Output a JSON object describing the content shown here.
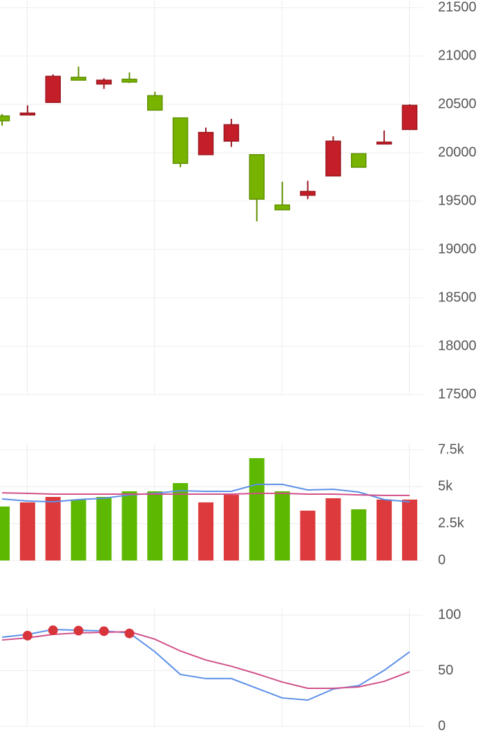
{
  "chart_data": [
    {
      "type": "candlestick",
      "categories": [
        null,
        null,
        null,
        null,
        null,
        null,
        null,
        null,
        null,
        null,
        null,
        null,
        null,
        null,
        null,
        null,
        null
      ],
      "open": [
        20380,
        20390,
        20520,
        20780,
        20710,
        20760,
        20590,
        20360,
        19980,
        20120,
        19980,
        19460,
        19560,
        19760,
        19990,
        20090,
        20240
      ],
      "high": [
        20400,
        20490,
        20810,
        20890,
        20770,
        20830,
        20630,
        20360,
        20260,
        20350,
        19980,
        19700,
        19710,
        20170,
        19990,
        20230,
        20500
      ],
      "low": [
        20280,
        20390,
        20520,
        20750,
        20660,
        20720,
        20440,
        19850,
        19980,
        20060,
        19290,
        19410,
        19520,
        19760,
        19850,
        20090,
        20240
      ],
      "close": [
        20330,
        20410,
        20790,
        20750,
        20750,
        20730,
        20440,
        19890,
        20210,
        20290,
        19520,
        19410,
        19600,
        20120,
        19850,
        20110,
        20490
      ],
      "up_color": "#c41e28",
      "down_color": "#78b300",
      "ylim": [
        17500,
        21500
      ],
      "yticks": [
        17500,
        18000,
        18500,
        19000,
        19500,
        20000,
        20500,
        21000,
        21500
      ],
      "grid": true
    },
    {
      "type": "bar",
      "categories": [
        null,
        null,
        null,
        null,
        null,
        null,
        null,
        null,
        null,
        null,
        null,
        null,
        null,
        null,
        null,
        null,
        null
      ],
      "series": [
        {
          "type": "bar",
          "values": [
            3660,
            3940,
            4310,
            4130,
            4310,
            4690,
            4690,
            5250,
            3940,
            4450,
            6940,
            4690,
            3380,
            4220,
            3470,
            4130,
            4130
          ],
          "colors": [
            "#5cb800",
            "#dc3a3c",
            "#dc3a3c",
            "#5cb800",
            "#5cb800",
            "#5cb800",
            "#5cb800",
            "#5cb800",
            "#dc3a3c",
            "#dc3a3c",
            "#5cb800",
            "#5cb800",
            "#dc3a3c",
            "#dc3a3c",
            "#5cb800",
            "#dc3a3c",
            "#dc3a3c"
          ]
        },
        {
          "type": "line",
          "color": "#5b8fe8",
          "values": [
            4170,
            4030,
            3980,
            4130,
            4220,
            4450,
            4550,
            4730,
            4690,
            4690,
            5160,
            5160,
            4780,
            4830,
            4640,
            4130,
            3980
          ]
        },
        {
          "type": "line",
          "color": "#d0508a",
          "values": [
            4590,
            4550,
            4500,
            4500,
            4500,
            4500,
            4500,
            4500,
            4500,
            4500,
            4550,
            4550,
            4500,
            4500,
            4450,
            4410,
            4410
          ]
        }
      ],
      "ylim": [
        0,
        7500
      ],
      "yticks": [
        0,
        {
          "value": 2500,
          "label": "2.5k"
        },
        {
          "value": 5000,
          "label": "5k"
        },
        {
          "value": 7500,
          "label": "7.5k"
        }
      ],
      "grid": true
    },
    {
      "type": "line",
      "categories": [
        null,
        null,
        null,
        null,
        null,
        null,
        null,
        null,
        null,
        null,
        null,
        null,
        null,
        null,
        null,
        null,
        null
      ],
      "series": [
        {
          "type": "line",
          "color": "#5b8fe8",
          "values": [
            80.1,
            82.6,
            87,
            86.3,
            85.7,
            83.9,
            67,
            46.6,
            42.9,
            42.9,
            34.2,
            25.5,
            23.6,
            33.5,
            36.6,
            50.3,
            67
          ]
        },
        {
          "type": "line",
          "color": "#d0508a",
          "values": [
            77.6,
            79.5,
            82.6,
            83.9,
            84.5,
            85.1,
            78.3,
            67.7,
            59.6,
            54,
            47.2,
            39.8,
            34.2,
            34.2,
            35.4,
            40.4,
            49.1
          ]
        },
        {
          "type": "scatter",
          "color": "#d8343c",
          "values": [
            null,
            81.5,
            86.3,
            86,
            85.5,
            83.5,
            null,
            null,
            null,
            null,
            null,
            null,
            null,
            null,
            null,
            null,
            null
          ]
        }
      ],
      "ylim": [
        0,
        100
      ],
      "yticks": [
        0,
        50,
        100
      ],
      "grid": true
    }
  ]
}
